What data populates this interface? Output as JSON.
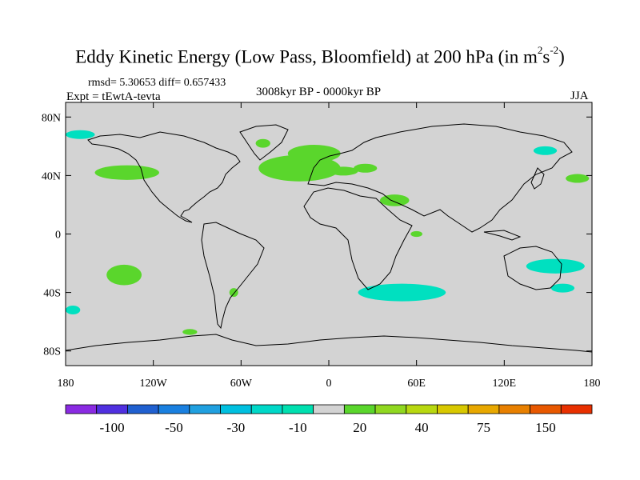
{
  "title": {
    "main": "Eddy Kinetic Energy (Low Pass, Bloomfield) at 200 hPa (in m",
    "sup1": "2",
    "mid": "s",
    "sup2": "-2",
    "end": ")"
  },
  "stats": "rmsd= 5.30653 diff= 0.657433",
  "experiment": "Expt = tEwtA-tevta",
  "period": "3008kyr BP - 0000kyr BP",
  "season": "JJA",
  "map": {
    "projection": "cylindrical-equidistant",
    "lon_range": [
      -180,
      180
    ],
    "lat_range": [
      -90,
      90
    ],
    "background_color": "#d3d3d3",
    "lat_ticks": [
      {
        "value": 80,
        "label": "80N"
      },
      {
        "value": 40,
        "label": "40N"
      },
      {
        "value": 0,
        "label": "0"
      },
      {
        "value": -40,
        "label": "40S"
      },
      {
        "value": -80,
        "label": "80S"
      }
    ],
    "lon_ticks": [
      {
        "value": -180,
        "label": "180"
      },
      {
        "value": -120,
        "label": "120W"
      },
      {
        "value": -60,
        "label": "60W"
      },
      {
        "value": 0,
        "label": "0"
      },
      {
        "value": 60,
        "label": "60E"
      },
      {
        "value": 120,
        "label": "120E"
      },
      {
        "value": 180,
        "label": "180"
      }
    ],
    "anomaly_regions": [
      {
        "name": "north-pacific-positive",
        "color": "#5ad62c",
        "lon": -138,
        "lat": 42,
        "rlon": 22,
        "rlat": 5
      },
      {
        "name": "north-atlantic-positive",
        "color": "#5ad62c",
        "lon": -20,
        "lat": 45,
        "rlon": 28,
        "rlat": 9
      },
      {
        "name": "north-atlantic-positive-2",
        "color": "#5ad62c",
        "lon": -10,
        "lat": 55,
        "rlon": 18,
        "rlat": 6
      },
      {
        "name": "greenland-positive",
        "color": "#5ad62c",
        "lon": -45,
        "lat": 62,
        "rlon": 5,
        "rlat": 3
      },
      {
        "name": "europe-positive",
        "color": "#5ad62c",
        "lon": 10,
        "lat": 43,
        "rlon": 10,
        "rlat": 3
      },
      {
        "name": "mediterranean-positive",
        "color": "#5ad62c",
        "lon": 25,
        "lat": 45,
        "rlon": 8,
        "rlat": 3
      },
      {
        "name": "arabia-positive",
        "color": "#5ad62c",
        "lon": 45,
        "lat": 23,
        "rlon": 10,
        "rlat": 4
      },
      {
        "name": "west-pacific-positive",
        "color": "#5ad62c",
        "lon": 170,
        "lat": 38,
        "rlon": 8,
        "rlat": 3
      },
      {
        "name": "south-pacific-positive",
        "color": "#5ad62c",
        "lon": -140,
        "lat": -28,
        "rlon": 12,
        "rlat": 7
      },
      {
        "name": "south-america-positive",
        "color": "#5ad62c",
        "lon": -65,
        "lat": -40,
        "rlon": 3,
        "rlat": 3
      },
      {
        "name": "southern-ocean-positive",
        "color": "#5ad62c",
        "lon": -95,
        "lat": -67,
        "rlon": 5,
        "rlat": 2
      },
      {
        "name": "indian-ocean-positive",
        "color": "#5ad62c",
        "lon": 60,
        "lat": 0,
        "rlon": 4,
        "rlat": 2
      },
      {
        "name": "arctic-pacific-negative",
        "color": "#00e0c0",
        "lon": -170,
        "lat": 68,
        "rlon": 10,
        "rlat": 3
      },
      {
        "name": "kamchatka-negative",
        "color": "#00e0c0",
        "lon": 148,
        "lat": 57,
        "rlon": 8,
        "rlat": 3
      },
      {
        "name": "south-indian-negative",
        "color": "#00e0c0",
        "lon": 50,
        "lat": -40,
        "rlon": 30,
        "rlat": 6
      },
      {
        "name": "australia-negative",
        "color": "#00e0c0",
        "lon": 155,
        "lat": -22,
        "rlon": 20,
        "rlat": 5
      },
      {
        "name": "tasman-negative",
        "color": "#00e0c0",
        "lon": 160,
        "lat": -37,
        "rlon": 8,
        "rlat": 3
      },
      {
        "name": "southeast-pacific-negative",
        "color": "#00e0c0",
        "lon": -175,
        "lat": -52,
        "rlon": 5,
        "rlat": 3
      }
    ]
  },
  "colorbar": {
    "colors": [
      "#8a2be2",
      "#5030e0",
      "#2060d0",
      "#1a80e0",
      "#20a0e0",
      "#00c0e0",
      "#00d8c8",
      "#00e0b0",
      "#d3d3d3",
      "#5ad62c",
      "#90d820",
      "#b8d810",
      "#d8c800",
      "#e8a800",
      "#e88000",
      "#e85800",
      "#e83000"
    ],
    "labels": [
      {
        "index": 1,
        "text": "-100"
      },
      {
        "index": 3,
        "text": "-50"
      },
      {
        "index": 5,
        "text": "-30"
      },
      {
        "index": 7,
        "text": "-10"
      },
      {
        "index": 9,
        "text": "20"
      },
      {
        "index": 11,
        "text": "40"
      },
      {
        "index": 13,
        "text": "75"
      },
      {
        "index": 15,
        "text": "150"
      }
    ]
  }
}
